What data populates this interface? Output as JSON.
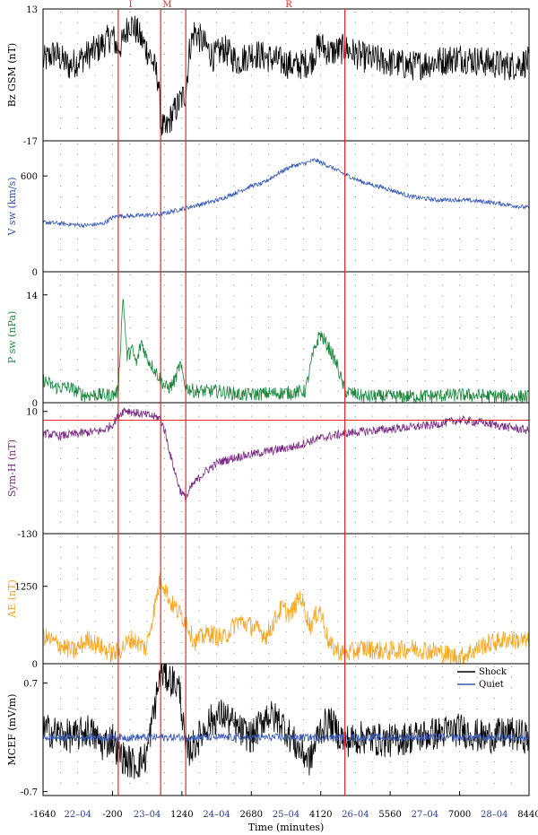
{
  "figure": {
    "xlabel": "Time (minutes)",
    "x_ticks": [
      "-1640",
      "-200",
      "1240",
      "2680",
      "4120",
      "5560",
      "7000",
      "8440"
    ],
    "x_tick_values": [
      -1640,
      -200,
      1240,
      2680,
      4120,
      5560,
      7000,
      8440
    ],
    "xlim": [
      -1640,
      8440
    ],
    "day_labels": [
      "22–04",
      "23–04",
      "24–04",
      "25–04",
      "26–04",
      "27–04",
      "28–04"
    ],
    "day_label_x": [
      -920,
      520,
      1960,
      3400,
      4840,
      6280,
      7720
    ],
    "phase_labels": [
      "I",
      "M",
      "R"
    ],
    "phase_label_x": [
      175,
      935,
      3455
    ],
    "phase_lines_x": [
      -80,
      800,
      1320,
      4620
    ],
    "colors": {
      "phase": "#e8262c",
      "day_label": "#2b3e8f",
      "axis": "#000000",
      "grid_dot": "#555555"
    }
  },
  "chart_data": [
    {
      "type": "line",
      "ylabel": "Bz GSM (nT)",
      "ylabel_color": "#000000",
      "ylim": [
        -17,
        13
      ],
      "yticks": [
        "13",
        "-17"
      ],
      "ytick_values": [
        13,
        -17
      ],
      "series": [
        {
          "color": "#000000",
          "x": [
            -1640,
            -1400,
            -1100,
            -800,
            -500,
            -300,
            -200,
            -100,
            0,
            150,
            300,
            450,
            600,
            750,
            800,
            900,
            1000,
            1100,
            1200,
            1320,
            1400,
            1500,
            1700,
            1900,
            2100,
            2400,
            2700,
            3000,
            3300,
            3600,
            3900,
            4100,
            4300,
            4620,
            5000,
            5500,
            6000,
            6500,
            7000,
            7500,
            8000,
            8440
          ],
          "y": [
            1,
            3,
            0,
            2,
            4,
            6,
            7,
            4,
            5,
            10,
            8,
            5,
            2,
            -3,
            -13,
            -15,
            -12,
            -10,
            -8,
            -6,
            4,
            8,
            5,
            2,
            4,
            1,
            3,
            2,
            1,
            0,
            1,
            5,
            3,
            4,
            2,
            1,
            0,
            1,
            2,
            1,
            0,
            1
          ],
          "noise": 3.5
        }
      ]
    },
    {
      "type": "line",
      "ylabel": "V sw (km/s)",
      "ylabel_color": "#3050b4",
      "ylim": [
        0,
        820
      ],
      "yticks": [
        "600",
        "0"
      ],
      "ytick_values": [
        600,
        0
      ],
      "series": [
        {
          "color": "#3b5bb5",
          "x": [
            -1640,
            -1200,
            -800,
            -400,
            -200,
            -80,
            300,
            800,
            1320,
            1600,
            2000,
            2400,
            2700,
            2900,
            3200,
            3500,
            3800,
            4000,
            4300,
            4620,
            5000,
            5500,
            6000,
            6500,
            7000,
            7500,
            8000,
            8440
          ],
          "y": [
            310,
            300,
            290,
            300,
            340,
            350,
            350,
            360,
            400,
            420,
            450,
            500,
            540,
            550,
            610,
            660,
            680,
            700,
            660,
            610,
            560,
            520,
            470,
            450,
            450,
            440,
            420,
            400
          ],
          "noise": 14
        }
      ]
    },
    {
      "type": "line",
      "ylabel": "P sw (nPa)",
      "ylabel_color": "#1a8c3a",
      "ylim": [
        0,
        17
      ],
      "yticks": [
        "14",
        "0"
      ],
      "ytick_values": [
        14,
        0
      ],
      "series": [
        {
          "color": "#17863a",
          "x": [
            -1640,
            -1400,
            -1100,
            -800,
            -500,
            -200,
            -80,
            20,
            100,
            200,
            300,
            400,
            500,
            600,
            700,
            800,
            900,
            1000,
            1100,
            1200,
            1320,
            1500,
            2000,
            2500,
            3000,
            3500,
            3800,
            3950,
            4100,
            4200,
            4300,
            4450,
            4620,
            5000,
            6000,
            7000,
            8000,
            8440
          ],
          "y": [
            3,
            2,
            2,
            1,
            1,
            1,
            1.5,
            14,
            6,
            7,
            5,
            8,
            6,
            5,
            4,
            3,
            2,
            2,
            3,
            5,
            2,
            1.5,
            1.5,
            1,
            1.2,
            1.3,
            1.5,
            6,
            9,
            8,
            7,
            5,
            1.5,
            0.8,
            0.8,
            1,
            0.8,
            0.8
          ],
          "noise": 0.9
        }
      ]
    },
    {
      "type": "line",
      "ylabel": "Sym-H (nT)",
      "ylabel_color": "#7a2a82",
      "ylim": [
        -130,
        20
      ],
      "yticks": [
        "10",
        "-130"
      ],
      "ytick_values": [
        10,
        -130
      ],
      "ref_y": 0,
      "ref_color": "#e8262c",
      "series": [
        {
          "color": "#7a2a82",
          "x": [
            -1640,
            -1300,
            -1000,
            -700,
            -400,
            -200,
            -80,
            50,
            300,
            600,
            800,
            900,
            1000,
            1100,
            1200,
            1320,
            1450,
            1700,
            2000,
            2400,
            2800,
            3200,
            3600,
            4000,
            4620,
            5200,
            6000,
            6500,
            7000,
            7500,
            8000,
            8440
          ],
          "y": [
            -15,
            -18,
            -16,
            -14,
            -12,
            -5,
            5,
            12,
            8,
            5,
            2,
            -15,
            -40,
            -60,
            -80,
            -90,
            -75,
            -60,
            -48,
            -42,
            -38,
            -34,
            -30,
            -22,
            -15,
            -12,
            -8,
            -5,
            0,
            -3,
            -8,
            -12
          ],
          "noise": 5
        }
      ]
    },
    {
      "type": "line",
      "ylabel": "AE (nT)",
      "ylabel_color": "#f0a020",
      "ylim": [
        0,
        2100
      ],
      "yticks": [
        "1250",
        "0"
      ],
      "ytick_values": [
        1250,
        0
      ],
      "series": [
        {
          "color": "#f5a623",
          "x": [
            -1640,
            -1300,
            -1000,
            -700,
            -400,
            -200,
            -80,
            200,
            500,
            800,
            900,
            1000,
            1100,
            1200,
            1320,
            1500,
            1800,
            2100,
            2400,
            2700,
            3000,
            3300,
            3500,
            3700,
            3900,
            4100,
            4300,
            4620,
            5000,
            5500,
            6000,
            6500,
            7000,
            7500,
            8000,
            8440
          ],
          "y": [
            450,
            300,
            200,
            400,
            250,
            150,
            200,
            400,
            250,
            1400,
            1200,
            1000,
            900,
            800,
            700,
            350,
            500,
            400,
            700,
            600,
            450,
            900,
            800,
            1100,
            600,
            900,
            300,
            150,
            250,
            200,
            250,
            200,
            100,
            300,
            400,
            350
          ],
          "noise": 160
        }
      ]
    },
    {
      "type": "line",
      "ylabel": "MCEF (mV/m)",
      "ylabel_color": "#000000",
      "ylim": [
        -0.75,
        0.95
      ],
      "yticks": [
        "0.7",
        "-0.7"
      ],
      "ytick_values": [
        0.7,
        -0.7
      ],
      "legend": {
        "placement": "top-right",
        "entries": [
          "Shock",
          "Quiet"
        ]
      },
      "series": [
        {
          "name": "Shock",
          "color": "#000000",
          "x": [
            -1640,
            -1300,
            -1000,
            -700,
            -400,
            -200,
            -80,
            100,
            300,
            500,
            800,
            900,
            1000,
            1100,
            1200,
            1320,
            1500,
            1800,
            2100,
            2400,
            2700,
            3000,
            3300,
            3600,
            3900,
            4100,
            4300,
            4620,
            5000,
            5500,
            6000,
            6500,
            7000,
            7500,
            8000,
            8440
          ],
          "y": [
            0.1,
            0.05,
            0.0,
            0.1,
            -0.1,
            0.0,
            -0.2,
            -0.3,
            -0.35,
            -0.25,
            0.85,
            0.8,
            0.75,
            0.7,
            0.6,
            -0.2,
            -0.1,
            0.2,
            0.3,
            0.1,
            0.0,
            0.3,
            0.2,
            -0.1,
            -0.3,
            0.1,
            0.2,
            -0.05,
            0.0,
            -0.05,
            0.0,
            0.05,
            0.1,
            0.0,
            0.05,
            0.0
          ],
          "noise": 0.22
        },
        {
          "name": "Quiet",
          "color": "#3b5bb5",
          "x": [
            -1640,
            8440
          ],
          "y": [
            0.0,
            0.0
          ],
          "noise": 0.05
        }
      ]
    }
  ]
}
